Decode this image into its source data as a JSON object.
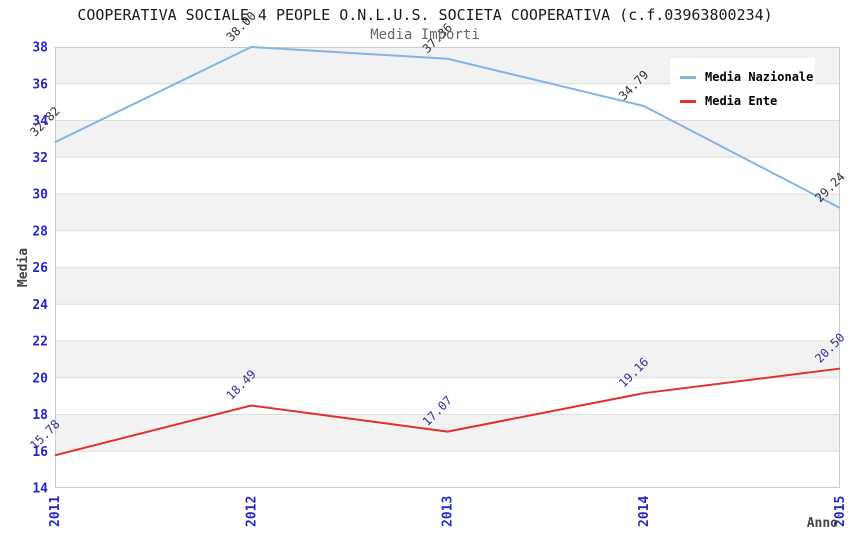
{
  "chart_data": {
    "type": "line",
    "title": "COOPERATIVA SOCIALE 4 PEOPLE O.N.L.U.S. SOCIETA COOPERATIVA (c.f.03963800234)",
    "subtitle": "Media Importi",
    "xlabel": "Anno",
    "ylabel": "Media",
    "x": [
      "2011",
      "2012",
      "2013",
      "2014",
      "2015"
    ],
    "ylim": [
      14,
      38
    ],
    "ytick_step": 2,
    "grid": "horizontal-bands",
    "legend_position": "top-right",
    "series": [
      {
        "name": "Media Nazionale",
        "color": "#85b3e3",
        "label_color": "#333333",
        "values": [
          32.82,
          38.0,
          37.36,
          34.79,
          29.24
        ],
        "value_labels": [
          "32.82",
          "38.00",
          "37.36",
          "34.79",
          "29.24"
        ]
      },
      {
        "name": "Media Ente",
        "color": "#e03030",
        "label_color": "#333399",
        "values": [
          15.78,
          18.49,
          17.07,
          19.16,
          20.5
        ],
        "value_labels": [
          "15.78",
          "18.49",
          "17.07",
          "19.16",
          "20.50"
        ]
      }
    ],
    "style": {
      "band_color": "#f2f2f2",
      "grid_color": "#dddddd",
      "border_color": "#cccccc",
      "tick_label_color": "#2525cc",
      "axis_title_color": "#444444",
      "title_color": "#1a1a1a",
      "subtitle_color": "#666666"
    }
  }
}
